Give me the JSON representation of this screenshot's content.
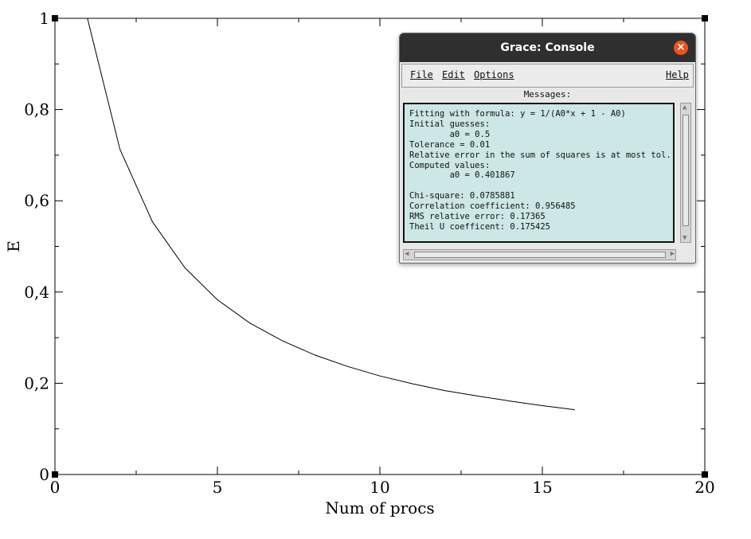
{
  "chart_data": {
    "type": "line",
    "xlabel": "Num of procs",
    "ylabel": "E",
    "xlim": [
      0,
      20
    ],
    "ylim": [
      0,
      1
    ],
    "x_ticks": [
      "0",
      "5",
      "10",
      "15",
      "20"
    ],
    "y_ticks": [
      "0",
      "0,2",
      "0,4",
      "0,6",
      "0,8",
      "1"
    ],
    "grid": false,
    "series": [
      {
        "x": [
          1,
          2,
          3,
          4,
          5,
          6,
          7,
          8,
          9,
          10,
          11,
          12,
          13,
          14,
          15,
          16
        ],
        "y": [
          1.0,
          0.713,
          0.554,
          0.453,
          0.383,
          0.332,
          0.293,
          0.262,
          0.237,
          0.216,
          0.199,
          0.184,
          0.172,
          0.161,
          0.151,
          0.142
        ]
      }
    ]
  },
  "console": {
    "title": "Grace: Console",
    "menu": {
      "file": "File",
      "edit": "Edit",
      "options": "Options",
      "help": "Help"
    },
    "messages_label": "Messages:",
    "lines": [
      "Fitting with formula: y = 1/(A0*x + 1 - A0)",
      "Initial guesses:",
      "        a0 = 0.5",
      "Tolerance = 0.01",
      "Relative error in the sum of squares is at most tol.",
      "Computed values:",
      "        a0 = 0.401867",
      "",
      "Chi-square: 0.0785881",
      "Correlation coefficient: 0.956485",
      "RMS relative error: 0.17365",
      "Theil U coefficent: 0.175425"
    ]
  }
}
